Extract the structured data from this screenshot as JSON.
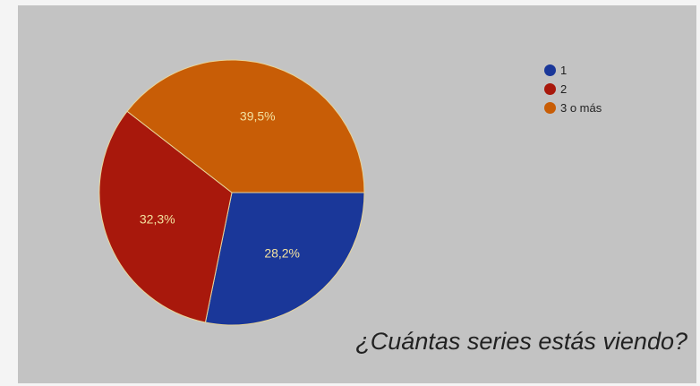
{
  "chart_data": {
    "type": "pie",
    "title": "",
    "categories": [
      "1",
      "2",
      "3 o más"
    ],
    "values": [
      28.2,
      32.3,
      39.5
    ],
    "data_labels": [
      "28,2%",
      "32,3%",
      "39,5%"
    ],
    "colors": [
      "#1a3799",
      "#a8180c",
      "#c85d06"
    ],
    "label_color": "#f3e2a0",
    "start_angle": "3 o'clock, clockwise",
    "legend": {
      "placement": "top-right",
      "items": [
        {
          "label": "1",
          "color": "#1a3799"
        },
        {
          "label": "2",
          "color": "#a8180c"
        },
        {
          "label": "3 o más",
          "color": "#c85d06"
        }
      ]
    }
  },
  "caption": "¿Cuántas series estás viendo?",
  "colors": {
    "page_background": "#f4f4f4",
    "panel_background": "#c3c3c3",
    "slice_border": "#e8d59a"
  }
}
